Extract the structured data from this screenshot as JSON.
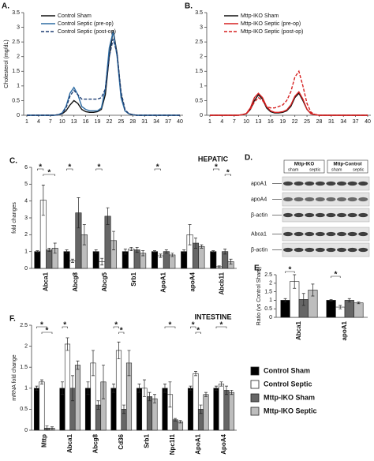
{
  "chart_data": [
    {
      "type": "line",
      "label": "A.",
      "y_label": "Cholesterol (mg/dL)",
      "x": [
        1,
        2,
        3,
        4,
        5,
        6,
        7,
        8,
        9,
        10,
        11,
        12,
        13,
        14,
        15,
        16,
        17,
        18,
        19,
        20,
        21,
        22,
        23,
        24,
        25,
        26,
        27,
        28,
        29,
        30,
        31,
        32,
        33,
        34,
        35,
        36,
        37,
        38,
        39,
        40
      ],
      "xlim": [
        1,
        40
      ],
      "xticks": [
        1,
        4,
        7,
        10,
        13,
        16,
        19,
        22,
        25,
        28,
        31,
        34,
        37,
        40
      ],
      "ylim": [
        0,
        3.5
      ],
      "yticks": [
        0,
        0.5,
        1,
        1.5,
        2,
        2.5,
        3,
        3.5
      ],
      "series": [
        {
          "name": "Control Sham",
          "color": "#111111",
          "dashed": false,
          "values": [
            0,
            0,
            0,
            0,
            0,
            0,
            0,
            0,
            0.02,
            0.05,
            0.15,
            0.35,
            0.5,
            0.4,
            0.2,
            0.12,
            0.1,
            0.1,
            0.12,
            0.2,
            0.7,
            2.0,
            2.9,
            2.1,
            0.7,
            0.15,
            0.05,
            0.02,
            0,
            0,
            0,
            0,
            0,
            0,
            0,
            0,
            0,
            0,
            0,
            0
          ]
        },
        {
          "name": "Control Septic (pre-op)",
          "color": "#2e6da4",
          "dashed": false,
          "values": [
            0,
            0,
            0,
            0,
            0,
            0,
            0,
            0,
            0.02,
            0.08,
            0.3,
            0.75,
            0.95,
            0.7,
            0.3,
            0.2,
            0.15,
            0.15,
            0.15,
            0.25,
            0.9,
            2.3,
            2.85,
            2.0,
            0.6,
            0.15,
            0.05,
            0.02,
            0,
            0,
            0,
            0,
            0,
            0,
            0,
            0,
            0,
            0,
            0,
            0
          ]
        },
        {
          "name": "Control Septic (post-op)",
          "color": "#1f3f73",
          "dashed": true,
          "values": [
            0,
            0,
            0,
            0,
            0,
            0,
            0,
            0,
            0.02,
            0.06,
            0.25,
            0.65,
            0.85,
            0.7,
            0.55,
            0.55,
            0.55,
            0.55,
            0.55,
            0.6,
            0.9,
            2.0,
            2.6,
            2.1,
            0.8,
            0.2,
            0.05,
            0.02,
            0,
            0,
            0,
            0,
            0,
            0,
            0,
            0,
            0,
            0,
            0,
            0
          ]
        }
      ]
    },
    {
      "type": "line",
      "label": "B.",
      "x": [
        1,
        2,
        3,
        4,
        5,
        6,
        7,
        8,
        9,
        10,
        11,
        12,
        13,
        14,
        15,
        16,
        17,
        18,
        19,
        20,
        21,
        22,
        23,
        24,
        25,
        26,
        27,
        28,
        29,
        30,
        31,
        32,
        33,
        34,
        35,
        36,
        37,
        38,
        39,
        40
      ],
      "xlim": [
        1,
        40
      ],
      "xticks": [
        1,
        4,
        7,
        10,
        13,
        16,
        19,
        22,
        25,
        28,
        31,
        34,
        37,
        40
      ],
      "ylim": [
        0,
        3.5
      ],
      "yticks": [
        0,
        0.5,
        1,
        1.5,
        2,
        2.5,
        3,
        3.5
      ],
      "series": [
        {
          "name": "Mttp-IKO Sham",
          "color": "#111111",
          "dashed": false,
          "values": [
            0,
            0,
            0,
            0,
            0,
            0,
            0,
            0,
            0.02,
            0.05,
            0.2,
            0.5,
            0.7,
            0.55,
            0.25,
            0.12,
            0.08,
            0.08,
            0.1,
            0.15,
            0.3,
            0.6,
            0.75,
            0.5,
            0.2,
            0.05,
            0.02,
            0,
            0,
            0,
            0,
            0,
            0,
            0,
            0,
            0,
            0,
            0,
            0,
            0
          ]
        },
        {
          "name": "Mttp-IKO Septic (pre-op)",
          "color": "#d62020",
          "dashed": false,
          "values": [
            0,
            0,
            0,
            0,
            0,
            0,
            0,
            0,
            0.02,
            0.06,
            0.25,
            0.6,
            0.75,
            0.6,
            0.3,
            0.15,
            0.1,
            0.1,
            0.12,
            0.18,
            0.35,
            0.65,
            0.8,
            0.55,
            0.2,
            0.05,
            0.02,
            0,
            0,
            0,
            0,
            0,
            0,
            0,
            0,
            0,
            0,
            0,
            0,
            0
          ]
        },
        {
          "name": "Mttp-IKO Septic (post-op)",
          "color": "#d62020",
          "dashed": true,
          "values": [
            0,
            0,
            0,
            0,
            0,
            0,
            0,
            0,
            0.02,
            0.05,
            0.2,
            0.45,
            0.6,
            0.5,
            0.3,
            0.25,
            0.25,
            0.3,
            0.35,
            0.5,
            0.8,
            1.3,
            1.5,
            1.0,
            0.4,
            0.1,
            0.03,
            0,
            0,
            0,
            0,
            0,
            0,
            0,
            0,
            0,
            0,
            0,
            0,
            0
          ]
        }
      ]
    },
    {
      "type": "bar",
      "label": "C.",
      "title": "HEPATIC",
      "y_label": "fold changes",
      "categories": [
        "Abca1",
        "Abcg8",
        "Abcg5",
        "Srb1",
        "ApoA1",
        "apoA4",
        "Abcb11"
      ],
      "ylim": [
        0,
        6
      ],
      "yticks": [
        0,
        1,
        2,
        3,
        4,
        5,
        6
      ],
      "series": [
        {
          "name": "Control Sham",
          "color": "#000000",
          "values": [
            1.0,
            1.0,
            1.0,
            1.0,
            1.0,
            1.0,
            1.0
          ],
          "errors": [
            0.05,
            0.1,
            0.1,
            0.15,
            0.05,
            0.1,
            0.05
          ]
        },
        {
          "name": "Control Septic",
          "color": "#ffffff",
          "values": [
            4.05,
            0.45,
            0.4,
            1.15,
            0.75,
            2.0,
            0.1
          ],
          "errors": [
            0.9,
            0.1,
            0.2,
            0.1,
            0.1,
            0.6,
            0.05
          ]
        },
        {
          "name": "Mttp-IKO Sham",
          "color": "#666666",
          "values": [
            1.1,
            3.3,
            3.1,
            1.1,
            1.0,
            1.5,
            1.0
          ],
          "errors": [
            0.1,
            0.9,
            0.5,
            0.15,
            0.1,
            0.3,
            0.15
          ]
        },
        {
          "name": "Mttp-IKO Septic",
          "color": "#bdbdbd",
          "values": [
            1.2,
            2.0,
            1.65,
            0.9,
            0.8,
            1.3,
            0.4
          ],
          "errors": [
            0.3,
            0.6,
            0.55,
            0.15,
            0.1,
            0.1,
            0.15
          ]
        }
      ],
      "annotations": [
        {
          "text": "*",
          "category": "Abca1",
          "series": [
            0,
            1
          ]
        },
        {
          "text": "*",
          "category": "Abca1",
          "series": [
            1,
            3
          ]
        },
        {
          "text": "*",
          "category": "Abcg8",
          "series": [
            0,
            1
          ]
        },
        {
          "text": "*",
          "category": "Abcg5",
          "series": [
            0,
            1
          ]
        },
        {
          "text": "*",
          "category": "ApoA1",
          "series": [
            0,
            1
          ]
        },
        {
          "text": "*",
          "category": "Abcb11",
          "series": [
            0,
            1
          ]
        },
        {
          "text": "*",
          "category": "Abcb11",
          "series": [
            2,
            3
          ]
        }
      ]
    },
    {
      "type": "bar",
      "label": "E.",
      "y_label": "Ratio (vs Control Sham)",
      "categories": [
        "Abca1",
        "apoA1"
      ],
      "ylim": [
        0,
        2.5
      ],
      "yticks": [
        0,
        0.5,
        1,
        1.5,
        2,
        2.5
      ],
      "series": [
        {
          "color": "#000000",
          "values": [
            1.0,
            1.0
          ],
          "errors": [
            0.1,
            0.05
          ]
        },
        {
          "color": "#ffffff",
          "values": [
            2.1,
            0.6
          ],
          "errors": [
            0.4,
            0.1
          ]
        },
        {
          "color": "#666666",
          "values": [
            1.05,
            1.0
          ],
          "errors": [
            0.35,
            0.1
          ]
        },
        {
          "color": "#bdbdbd",
          "values": [
            1.6,
            0.85
          ],
          "errors": [
            0.35,
            0.05
          ]
        }
      ],
      "annotations": [
        {
          "text": "*",
          "category": "Abca1",
          "series": [
            0,
            1
          ]
        },
        {
          "text": "*",
          "category": "apoA1",
          "series": [
            0,
            1
          ]
        }
      ]
    },
    {
      "type": "bar",
      "label": "F.",
      "title": "INTESTINE",
      "y_label": "mRNA fold change",
      "categories": [
        "Mttp",
        "Abca1",
        "Abcg8",
        "Cd36",
        "Srb1",
        "Npc1l1",
        "ApoA1",
        "ApoA4"
      ],
      "ylim": [
        0,
        2.5
      ],
      "yticks": [
        0,
        0.5,
        1,
        1.5,
        2,
        2.5
      ],
      "series": [
        {
          "color": "#000000",
          "values": [
            1.0,
            1.0,
            1.0,
            1.0,
            1.0,
            1.0,
            1.0,
            1.0
          ],
          "errors": [
            0.05,
            0.15,
            0.15,
            0.1,
            0.1,
            0.1,
            0.05,
            0.05
          ]
        },
        {
          "color": "#ffffff",
          "values": [
            1.15,
            2.05,
            1.6,
            1.9,
            1.0,
            0.85,
            1.35,
            1.1
          ],
          "errors": [
            0.05,
            0.15,
            0.3,
            0.2,
            0.2,
            0.3,
            0.05,
            0.05
          ]
        },
        {
          "color": "#666666",
          "values": [
            0.05,
            1.0,
            0.6,
            0.5,
            0.8,
            0.25,
            0.5,
            0.95
          ],
          "errors": [
            0.05,
            0.3,
            0.1,
            0.1,
            0.1,
            0.03,
            0.1,
            0.1
          ]
        },
        {
          "color": "#bdbdbd",
          "values": [
            0.05,
            1.55,
            1.15,
            1.6,
            0.75,
            0.2,
            0.85,
            0.9
          ],
          "errors": [
            0.03,
            0.1,
            0.4,
            0.3,
            0.1,
            0.03,
            0.05,
            0.05
          ]
        }
      ],
      "annotations": [
        {
          "text": "*",
          "category": "Mttp",
          "series": [
            0,
            2
          ]
        },
        {
          "text": "*",
          "category": "Mttp",
          "series": [
            1,
            3
          ]
        },
        {
          "text": "*",
          "category": "Abca1",
          "series": [
            0,
            1
          ]
        },
        {
          "text": "*",
          "category": "Cd36",
          "series": [
            0,
            1
          ]
        },
        {
          "text": "*",
          "category": "Cd36",
          "series": [
            1,
            2
          ]
        },
        {
          "text": "*",
          "category": "Npc1l1",
          "series": [
            0,
            2
          ]
        },
        {
          "text": "*",
          "category": "ApoA1",
          "series": [
            0,
            1
          ]
        },
        {
          "text": "*",
          "category": "ApoA1",
          "series": [
            1,
            2
          ]
        },
        {
          "text": "*",
          "category": "ApoA4",
          "series": [
            0,
            2
          ]
        }
      ]
    }
  ],
  "blot": {
    "label": "D.",
    "groups": [
      "Mttp-IKO",
      "Mttp-Control"
    ],
    "conditions": [
      "sham",
      "septic",
      "sham",
      "septic"
    ],
    "rows": [
      "apoA1",
      "apoA4",
      "β-actin",
      "Abca1",
      "β-actin"
    ]
  }
}
